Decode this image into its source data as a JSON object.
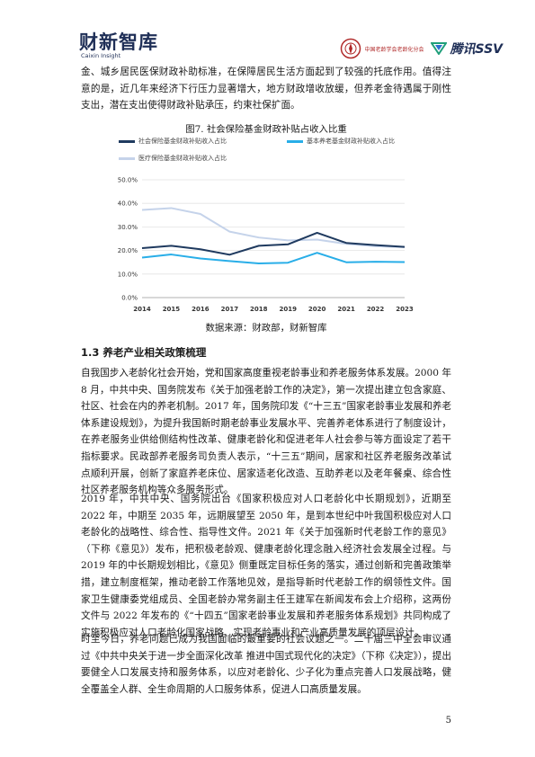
{
  "header": {
    "logo_cn": "财新智库",
    "logo_en": "Caixin Insight",
    "partner": "中国老龄学会老龄化分会",
    "tencent": "腾讯SSV"
  },
  "intro_paragraph": "金、城乡居民医保财政补助标准，在保障居民生活方面起到了较强的托底作用。值得注意的是，近几年来经济下行压力显著增大，地方财政增收放缓，但养老金待遇属于刚性支出，潜在支出使得财政补贴承压，约束社保扩面。",
  "figure": {
    "title": "图7. 社会保险基金财政补贴占收入比重",
    "source": "数据来源：财政部，财新智库"
  },
  "chart_data": {
    "type": "line",
    "title": "图7. 社会保险基金财政补贴占收入比重",
    "x": [
      "2014",
      "2015",
      "2016",
      "2017",
      "2018",
      "2019",
      "2020",
      "2021",
      "2022",
      "2023"
    ],
    "yticks": [
      "0.0%",
      "10.0%",
      "20.0%",
      "30.0%",
      "40.0%",
      "50.0%"
    ],
    "ylim": [
      0,
      50
    ],
    "grid": true,
    "legend_position": "top",
    "series": [
      {
        "name": "社会保险基金财政补贴收入占比",
        "color": "#1f3a5f",
        "values": [
          21.0,
          22.0,
          20.5,
          18.2,
          22.0,
          22.6,
          27.5,
          23.2,
          22.3,
          21.5
        ]
      },
      {
        "name": "基本养老基金财政补贴收入占比",
        "color": "#29aee8",
        "values": [
          17.0,
          18.3,
          16.6,
          15.5,
          14.5,
          14.8,
          19.0,
          15.0,
          15.2,
          15.1
        ]
      },
      {
        "name": "医疗保险基金财政补贴收入占比",
        "color": "#c5d3ea",
        "values": [
          37.2,
          38.0,
          35.5,
          28.0,
          25.5,
          24.3,
          24.6,
          22.8,
          21.8,
          21.4
        ]
      }
    ]
  },
  "section": {
    "title": "1.3 养老产业相关政策梳理",
    "paragraphs": [
      "自我国步入老龄化社会开始，党和国家高度重视老龄事业和养老服务体系发展。2000 年 8 月，中共中央、国务院发布《关于加强老龄工作的决定》，第一次提出建立包含家庭、社区、社会在内的养老机制。2017 年，国务院印发《“十三五”国家老龄事业发展和养老体系建设规划》，为提升我国新时期老龄事业发展水平、完善养老体系进行了制度设计，在养老服务业供给侧结构性改革、健康老龄化和促进老年人社会参与等方面设定了若干指标要求。民政部养老服务司负责人表示，“十三五”期间，居家和社区养老服务改革试点顺利开展，创新了家庭养老床位、居家适老化改造、互助养老以及老年餐桌、综合性社区养老服务机构等众多服务形式。",
      "2019 年，中共中央、国务院出台《国家积极应对人口老龄化中长期规划》，近期至 2022 年，中期至 2035 年，远期展望至 2050 年，是到本世纪中叶我国积极应对人口老龄化的战略性、综合性、指导性文件。2021 年《关于加强新时代老龄工作的意见》（下称《意见》）发布，把积极老龄观、健康老龄化理念融入经济社会发展全过程。与 2019 年的中长期规划相比，《意见》侧重既定目标任务的落实，通过创新和完善政策举措，建立制度框架，推动老龄工作落地见效，是指导新时代老龄工作的纲领性文件。国家卫生健康委党组成员、全国老龄办常务副主任王建军在新闻发布会上介绍称，这两份文件与 2022 年发布的《“十四五”国家老龄事业发展和养老服务体系规划》共同构成了实施积极应对人口老龄化国家战略、实现老龄事业和产业高质量发展的顶层设计。",
      "时至今日，养老问题已成为我国面临的最重要的社会议题之一。二十届三中全会审议通过《中共中央关于进一步全面深化改革 推进中国式现代化的决定》（下称《决定》），提出要健全人口发展支持和服务体系，以应对老龄化、少子化为重点完善人口发展战略，健全覆盖全人群、全生命周期的人口服务体系，促进人口高质量发展。"
    ]
  },
  "page_number": "5"
}
